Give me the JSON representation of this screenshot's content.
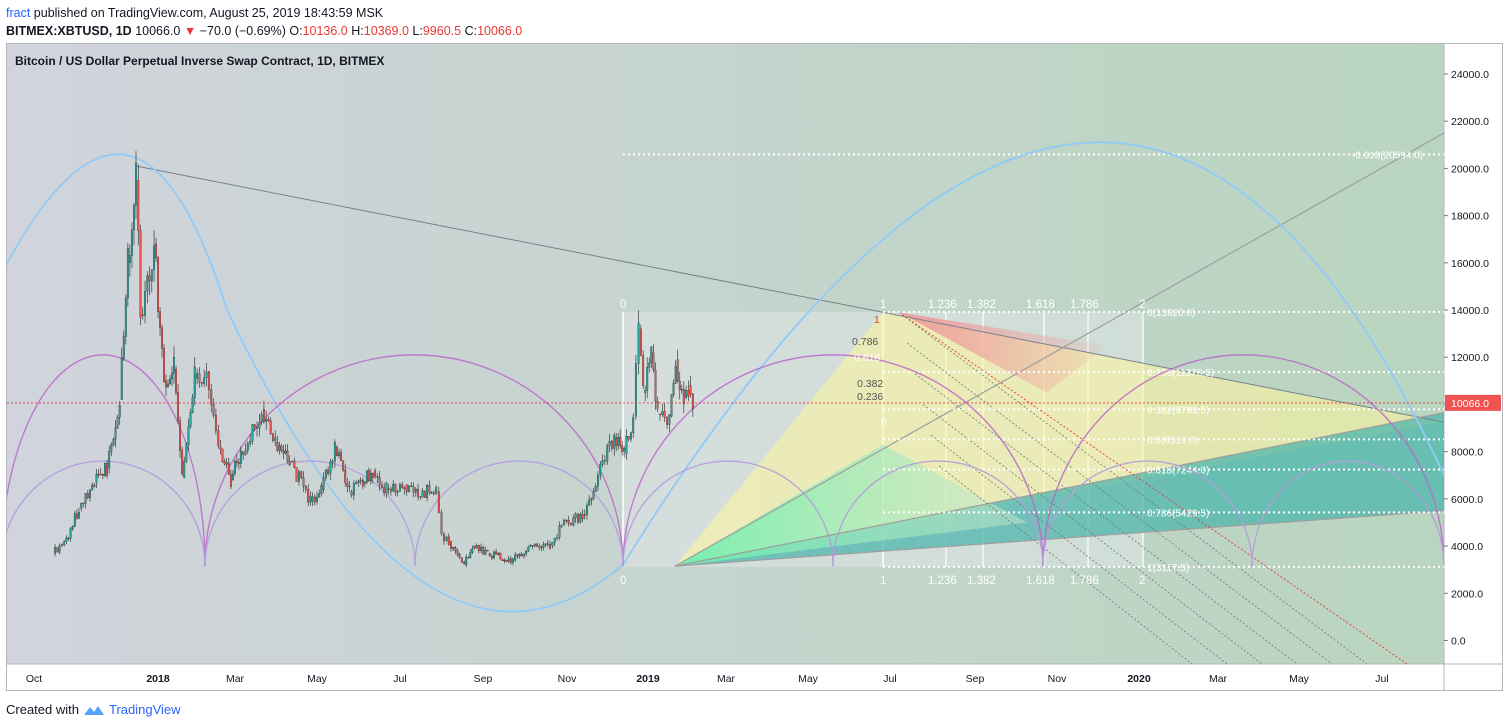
{
  "header": {
    "user": "fract",
    "published": "published on TradingView.com, August 25, 2019 18:43:59 MSK",
    "symbol": "BITMEX:XBTUSD, 1D",
    "last": "10066.0",
    "change": "−70.0 (−0.69%)",
    "o_label": "O:",
    "o_value": "10136.0",
    "h_label": "H:",
    "h_value": "10369.0",
    "l_label": "L:",
    "l_value": "9960.5",
    "c_label": "C:",
    "c_value": "10066.0"
  },
  "footer": {
    "created_with": "Created with",
    "brand": "TradingView"
  },
  "colors": {
    "background": "#d1d4dc",
    "up": "#26a69a",
    "down": "#ef5350",
    "price_line": "#e53935",
    "arc_blue": "#90caf9",
    "arc_purple": "#ba68c8"
  },
  "chart_data": {
    "type": "line",
    "title": "Bitcoin / US Dollar Perpetual Inverse Swap Contract, 1D, BITMEX",
    "y_ticks": [
      0,
      2000,
      4000,
      6000,
      8000,
      10000,
      12000,
      14000,
      16000,
      18000,
      20000,
      22000,
      24000
    ],
    "y_tick_labels": [
      "0.0",
      "2000.0",
      "4000.0",
      "6000.0",
      "8000.0",
      "10000.0",
      "12000.0",
      "14000.0",
      "16000.0",
      "18000.0",
      "20000.0",
      "22000.0",
      "24000.0"
    ],
    "x_ticks": [
      "Oct",
      "2018",
      "Mar",
      "May",
      "Jul",
      "Sep",
      "Nov",
      "2019",
      "Mar",
      "May",
      "Jul",
      "Sep",
      "Nov",
      "2020",
      "Mar",
      "May",
      "Jul"
    ],
    "ylim": [
      -2000,
      25000
    ],
    "last_price": 10066.0,
    "last_price_label": "10066.0",
    "price_series": [
      {
        "date": "2017-09-16",
        "close": 3700
      },
      {
        "date": "2017-10-01",
        "close": 4300
      },
      {
        "date": "2017-10-15",
        "close": 5600
      },
      {
        "date": "2017-11-01",
        "close": 6700
      },
      {
        "date": "2017-11-15",
        "close": 7300
      },
      {
        "date": "2017-11-29",
        "close": 10200
      },
      {
        "date": "2017-12-08",
        "close": 16000
      },
      {
        "date": "2017-12-17",
        "close": 19500
      },
      {
        "date": "2017-12-22",
        "close": 13800
      },
      {
        "date": "2018-01-06",
        "close": 16800
      },
      {
        "date": "2018-01-17",
        "close": 11000
      },
      {
        "date": "2018-01-28",
        "close": 11500
      },
      {
        "date": "2018-02-06",
        "close": 6900
      },
      {
        "date": "2018-02-20",
        "close": 11100
      },
      {
        "date": "2018-03-05",
        "close": 11400
      },
      {
        "date": "2018-03-18",
        "close": 8200
      },
      {
        "date": "2018-04-01",
        "close": 6800
      },
      {
        "date": "2018-04-12",
        "close": 8000
      },
      {
        "date": "2018-05-05",
        "close": 9800
      },
      {
        "date": "2018-05-20",
        "close": 8400
      },
      {
        "date": "2018-06-05",
        "close": 7600
      },
      {
        "date": "2018-06-28",
        "close": 5900
      },
      {
        "date": "2018-07-10",
        "close": 6400
      },
      {
        "date": "2018-07-25",
        "close": 8200
      },
      {
        "date": "2018-08-10",
        "close": 6300
      },
      {
        "date": "2018-08-25",
        "close": 6700
      },
      {
        "date": "2018-09-05",
        "close": 7200
      },
      {
        "date": "2018-09-20",
        "close": 6400
      },
      {
        "date": "2018-10-10",
        "close": 6600
      },
      {
        "date": "2018-10-30",
        "close": 6300
      },
      {
        "date": "2018-11-14",
        "close": 6300
      },
      {
        "date": "2018-11-20",
        "close": 4500
      },
      {
        "date": "2018-11-28",
        "close": 4200
      },
      {
        "date": "2018-12-10",
        "close": 3500
      },
      {
        "date": "2018-12-15",
        "close": 3200
      },
      {
        "date": "2018-12-24",
        "close": 4000
      },
      {
        "date": "2019-01-10",
        "close": 3700
      },
      {
        "date": "2019-02-07",
        "close": 3400
      },
      {
        "date": "2019-02-24",
        "close": 4000
      },
      {
        "date": "2019-03-20",
        "close": 4000
      },
      {
        "date": "2019-04-02",
        "close": 4900
      },
      {
        "date": "2019-04-25",
        "close": 5300
      },
      {
        "date": "2019-05-12",
        "close": 7000
      },
      {
        "date": "2019-05-30",
        "close": 8600
      },
      {
        "date": "2019-06-10",
        "close": 7900
      },
      {
        "date": "2019-06-20",
        "close": 9500
      },
      {
        "date": "2019-06-26",
        "close": 13200
      },
      {
        "date": "2019-07-01",
        "close": 10500
      },
      {
        "date": "2019-07-10",
        "close": 12200
      },
      {
        "date": "2019-07-17",
        "close": 9600
      },
      {
        "date": "2019-07-30",
        "close": 9500
      },
      {
        "date": "2019-08-06",
        "close": 11900
      },
      {
        "date": "2019-08-15",
        "close": 10300
      },
      {
        "date": "2019-08-20",
        "close": 10800
      },
      {
        "date": "2019-08-25",
        "close": 10066
      }
    ],
    "fib_levels": [
      {
        "label": "-0.618(20594.0)",
        "value": 20594
      },
      {
        "label": "0(13920.0)",
        "value": 13920
      },
      {
        "label": "0.236(11370.5)",
        "value": 11370.5
      },
      {
        "label": "0.382(9793.5)",
        "value": 9793.5
      },
      {
        "label": "0.5(8519.0)",
        "value": 8519
      },
      {
        "label": "0.618(7244.0)",
        "value": 7244
      },
      {
        "label": "0.786(5429.5)",
        "value": 5429.5
      },
      {
        "label": "1(3117.5)",
        "value": 3117.5
      }
    ],
    "fib_time_labels": [
      "1",
      "1.236",
      "1.382",
      "1.618",
      "1.786",
      "2"
    ],
    "fib_box_labels": [
      "0",
      "0"
    ],
    "fan_labels": [
      "1",
      "0.786",
      "0.618",
      "0.382",
      "0.236",
      "0"
    ]
  }
}
